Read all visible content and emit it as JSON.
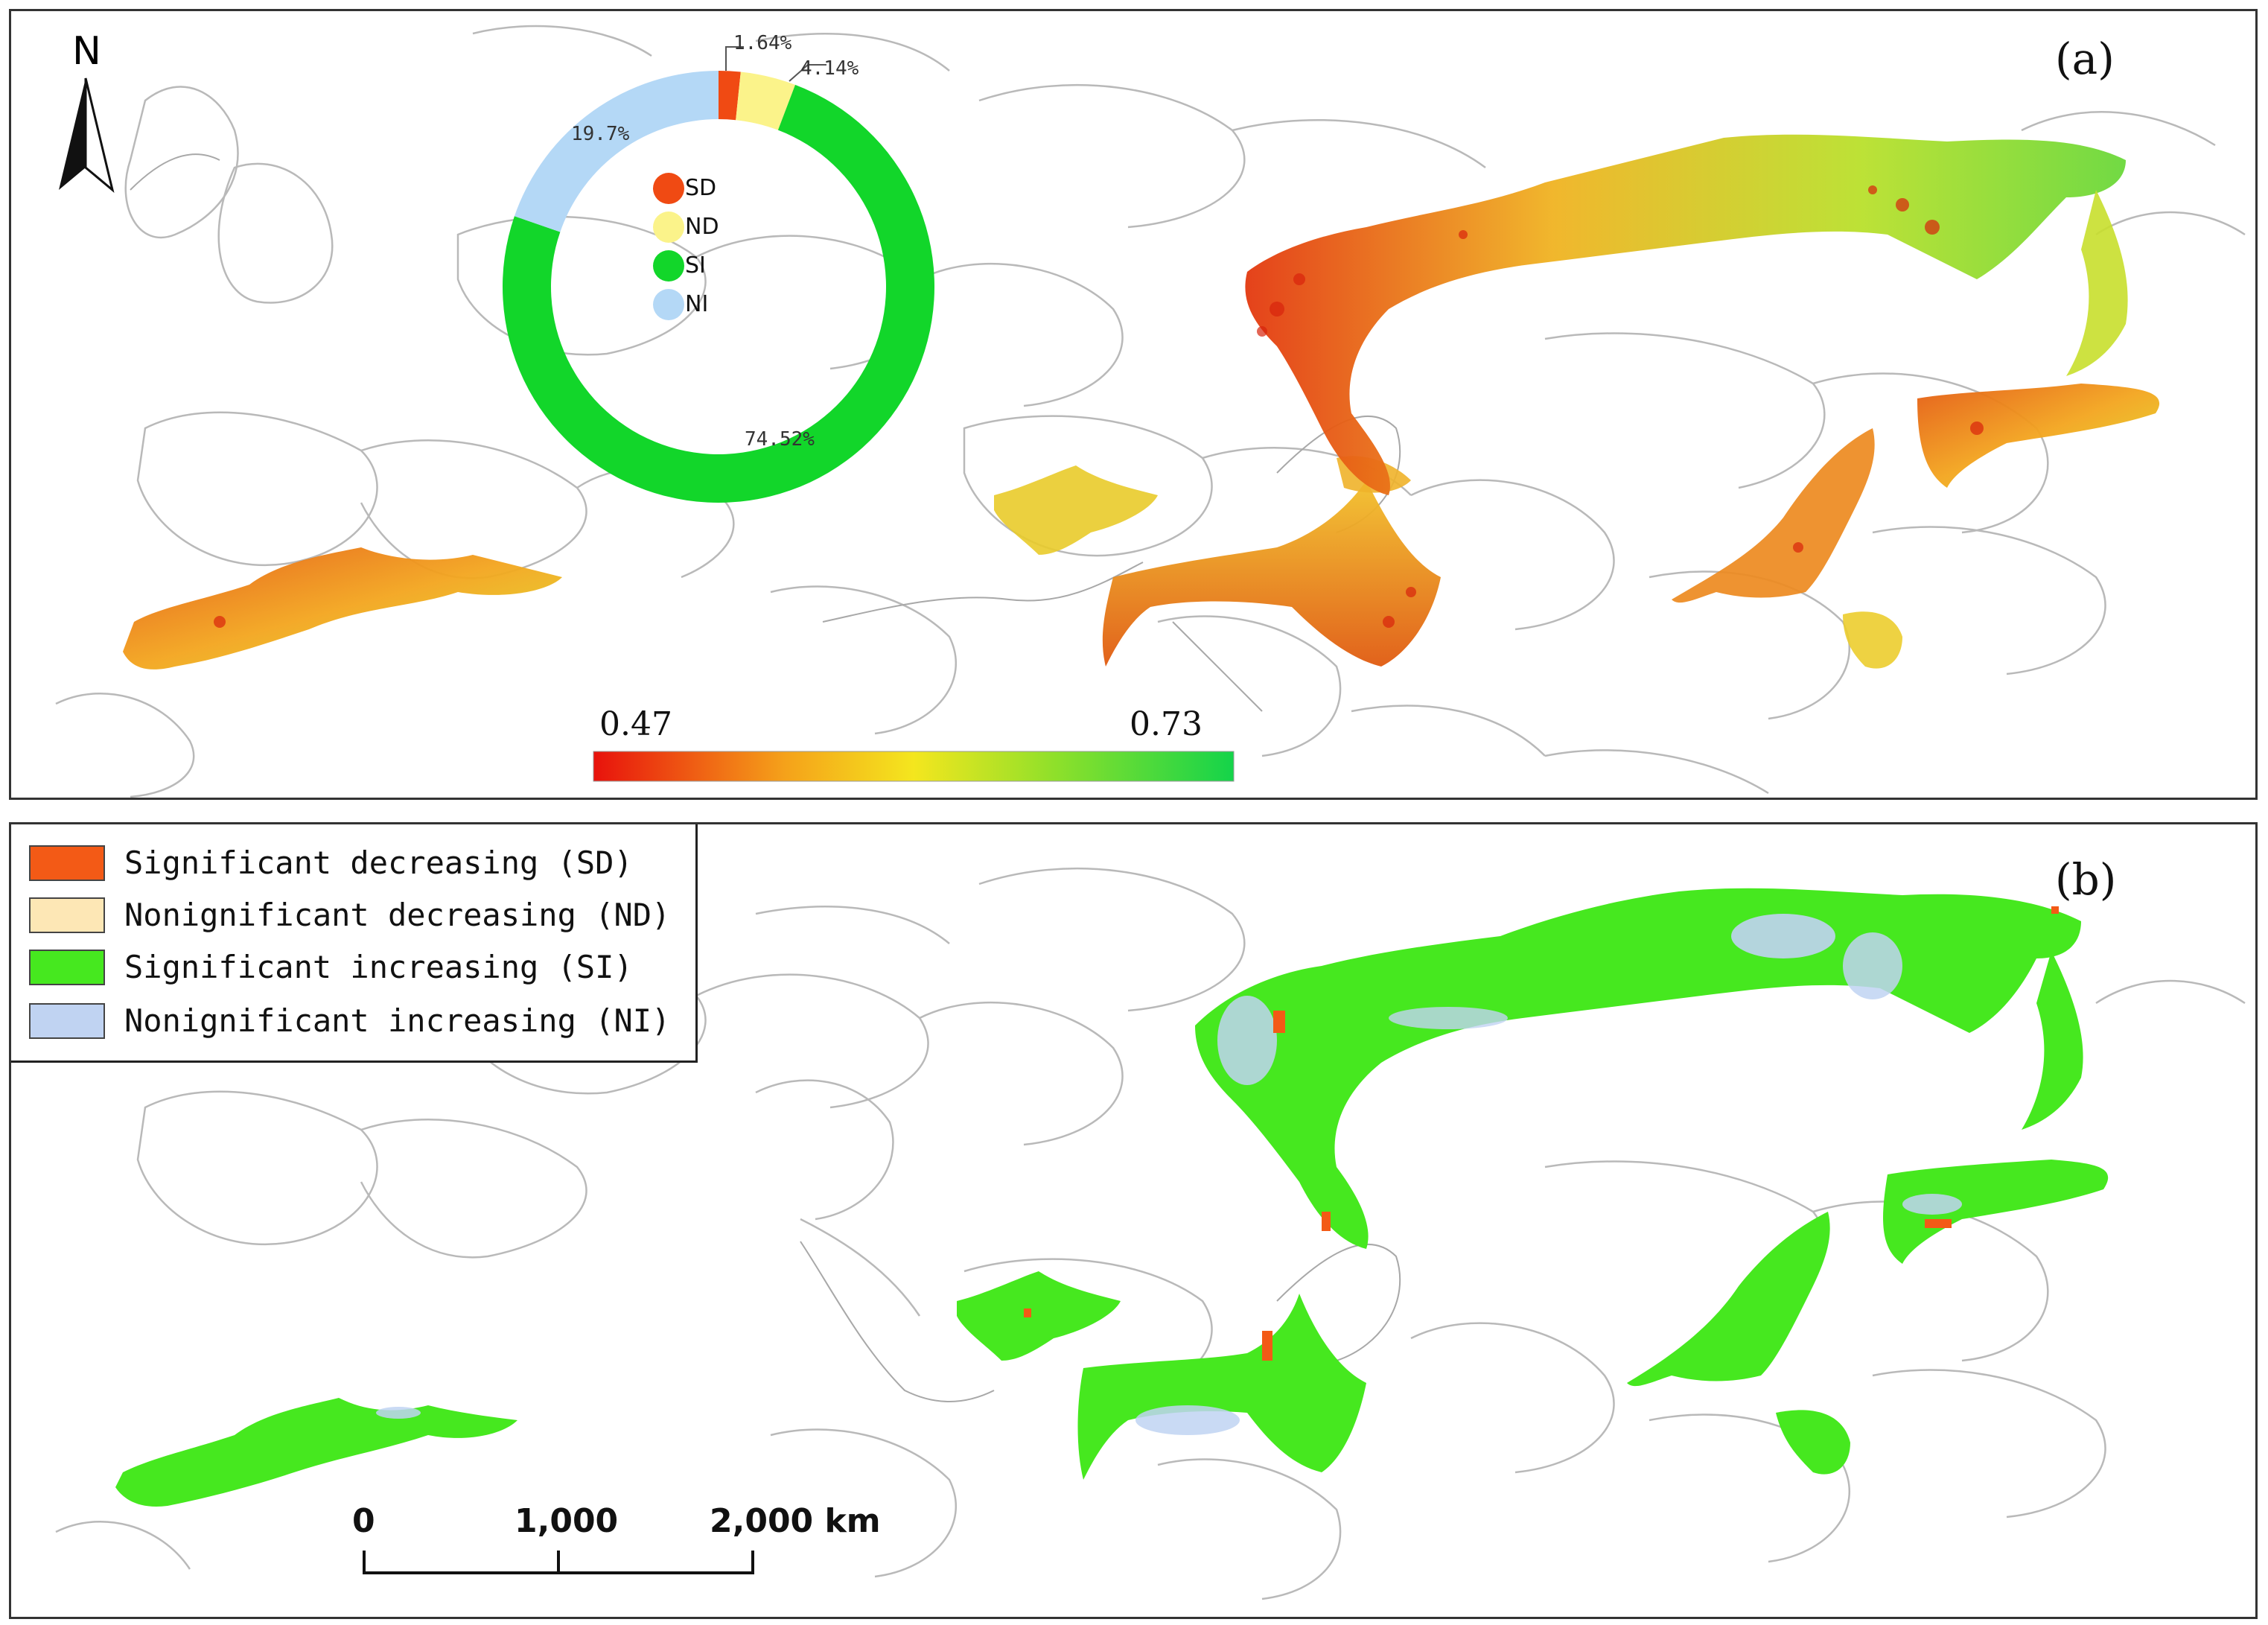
{
  "panel_a": {
    "label": "(a)",
    "north": "N",
    "donut": {
      "slices": [
        {
          "key": "SD",
          "value": 1.64,
          "label": "1.64%",
          "color": "#f04a13"
        },
        {
          "key": "ND",
          "value": 4.14,
          "label": "4.14%",
          "color": "#fbf38a"
        },
        {
          "key": "SI",
          "value": 74.52,
          "label": "74.52%",
          "color": "#12d62a"
        },
        {
          "key": "NI",
          "value": 19.7,
          "label": "19.7%",
          "color": "#b4d8f6"
        }
      ],
      "legend": [
        "SD",
        "ND",
        "SI",
        "NI"
      ]
    },
    "colorbar": {
      "min_label": "0.47",
      "max_label": "0.73",
      "colors": [
        "#e8120c",
        "#f5a21a",
        "#f4e61e",
        "#8fe02a",
        "#14d44a"
      ]
    }
  },
  "panel_b": {
    "label": "(b)",
    "legend": [
      {
        "text": "Significant decreasing (SD)",
        "color": "#f35a16"
      },
      {
        "text": "Nonignificant decreasing (ND)",
        "color": "#fde7b5"
      },
      {
        "text": "Significant increasing (SI)",
        "color": "#46e81f"
      },
      {
        "text": "Nonignificant increasing (NI)",
        "color": "#c0d3f2"
      }
    ],
    "scalebar": {
      "ticks": [
        "0",
        "1,000",
        "2,000 km"
      ]
    }
  }
}
